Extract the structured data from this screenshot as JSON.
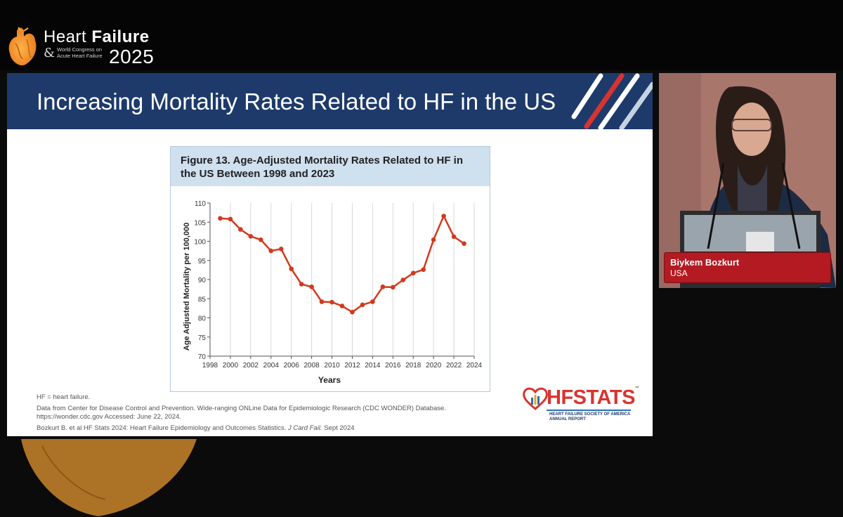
{
  "event": {
    "logo_line1_a": "Heart",
    "logo_line1_b": "Failure",
    "logo_amp": "&",
    "logo_sub": "World Congress on Acute Heart Failure",
    "logo_year": "2025"
  },
  "slide": {
    "title": "Increasing Mortality Rates Related to HF in the US",
    "figure_label": "Figure 13.",
    "figure_title": "Age-Adjusted Mortality Rates Related to HF in the US Between 1998 and 2023",
    "footnote_abbrev": "HF = heart failure.",
    "footnote_source": "Data from Center for Disease Control and Prevention. Wide-ranging ONLine Data for Epidemiologic Research (CDC WONDER) Database. https://wonder.cdc.gov Accessed: June 22, 2024.",
    "footnote_ref_a": "Bozkurt B. et al HF Stats 2024: Heart Failure Epidemiology and Outcomes Statistics.",
    "footnote_ref_journal": "J Card Fail.",
    "footnote_ref_b": "Sept  2024",
    "hfstats_word": "HFSTATS",
    "hfstats_tm": "™",
    "hfstats_sub1": "HEART FAILURE SOCIETY OF AMERICA",
    "hfstats_sub2": "ANNUAL REPORT"
  },
  "speaker": {
    "name": "Biykem Bozkurt",
    "country": "USA"
  },
  "colors": {
    "header_blue": "#1d3a6b",
    "line_red": "#d13a1e",
    "figure_head_blue": "#cfe0ef",
    "nameplate_red": "#b31a22"
  },
  "chart_data": {
    "type": "line",
    "title": "Age-Adjusted Mortality Rates Related to HF in the US Between 1998 and 2023",
    "xlabel": "Years",
    "ylabel": "Age Adjusted Mortality per 100,000",
    "xlim": [
      1998,
      2024
    ],
    "ylim": [
      70,
      110
    ],
    "x_ticks": [
      1998,
      2000,
      2002,
      2004,
      2006,
      2008,
      2010,
      2012,
      2014,
      2016,
      2018,
      2020,
      2022,
      2024
    ],
    "y_ticks": [
      70,
      75,
      80,
      85,
      90,
      95,
      100,
      105,
      110
    ],
    "grid": "vertical",
    "series": [
      {
        "x": [
          1999,
          2000,
          2001,
          2002,
          2003,
          2004,
          2005,
          2006,
          2007,
          2008,
          2009,
          2010,
          2011,
          2012,
          2013,
          2014,
          2015,
          2016,
          2017,
          2018,
          2019,
          2020,
          2021,
          2022,
          2023
        ],
        "values": [
          106.0,
          105.8,
          103.1,
          101.3,
          100.4,
          97.5,
          98.0,
          92.8,
          88.8,
          88.1,
          84.2,
          84.1,
          83.1,
          81.5,
          83.4,
          84.2,
          88.1,
          88.0,
          89.9,
          91.7,
          92.6,
          100.4,
          106.6,
          101.2,
          99.4
        ]
      }
    ]
  }
}
